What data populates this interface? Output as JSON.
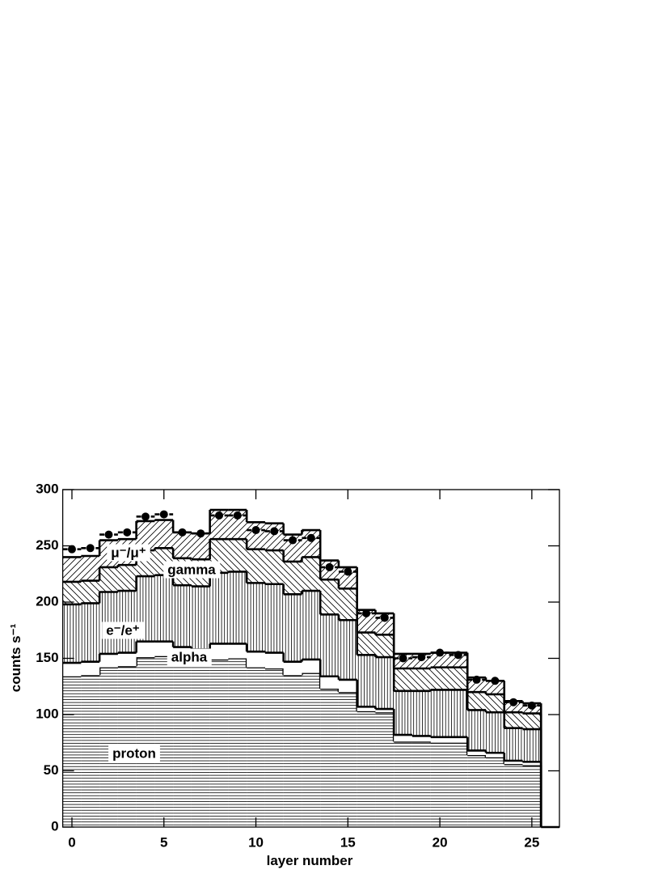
{
  "chart_data": {
    "type": "stacked-histogram",
    "xlabel": "layer number",
    "ylabel": "counts s⁻¹",
    "x": [
      0,
      1,
      2,
      3,
      4,
      5,
      6,
      7,
      8,
      9,
      10,
      11,
      12,
      13,
      14,
      15,
      16,
      17,
      18,
      19,
      20,
      21,
      22,
      23,
      24,
      25
    ],
    "xlim": [
      -0.5,
      26.5
    ],
    "xticks": [
      0,
      5,
      10,
      15,
      20,
      25
    ],
    "ylim": [
      0,
      300
    ],
    "yticks": [
      0,
      50,
      100,
      150,
      200,
      250,
      300
    ],
    "series": [
      {
        "name": "proton",
        "color": "#000000",
        "hatch": "horizontal",
        "values": [
          134,
          135,
          142,
          143,
          151,
          152,
          148,
          148,
          149,
          150,
          142,
          141,
          135,
          137,
          123,
          120,
          103,
          102,
          76,
          76,
          75,
          75,
          64,
          62,
          56,
          55
        ]
      },
      {
        "name": "alpha",
        "color": "#000000",
        "hatch": "none",
        "values": [
          12,
          12,
          12,
          12,
          14,
          13,
          12,
          10,
          14,
          13,
          14,
          14,
          12,
          12,
          11,
          11,
          4,
          3,
          6,
          5,
          5,
          5,
          4,
          4,
          3,
          3
        ]
      },
      {
        "name": "e⁻/e⁺",
        "color": "#000000",
        "hatch": "vertical",
        "values": [
          52,
          52,
          55,
          55,
          58,
          59,
          55,
          56,
          63,
          64,
          61,
          61,
          60,
          61,
          55,
          53,
          46,
          46,
          39,
          40,
          42,
          42,
          36,
          36,
          29,
          29
        ]
      },
      {
        "name": "gamma",
        "color": "#000000",
        "hatch": "backslash",
        "values": [
          20,
          20,
          22,
          23,
          23,
          24,
          24,
          24,
          30,
          29,
          30,
          30,
          29,
          30,
          31,
          28,
          20,
          20,
          20,
          20,
          20,
          20,
          16,
          16,
          14,
          14
        ]
      },
      {
        "name": "μ⁻/μ⁺",
        "color": "#000000",
        "hatch": "slash",
        "values": [
          22,
          22,
          24,
          23,
          26,
          25,
          23,
          23,
          26,
          26,
          24,
          24,
          24,
          24,
          17,
          19,
          20,
          19,
          13,
          13,
          13,
          13,
          13,
          12,
          10,
          9
        ]
      }
    ],
    "points": {
      "color": "#000000",
      "values": [
        247,
        248,
        260,
        262,
        276,
        278,
        262,
        261,
        277,
        277,
        264,
        263,
        255,
        257,
        231,
        227,
        190,
        186,
        150,
        151,
        155,
        153,
        131,
        130,
        111,
        108
      ]
    }
  }
}
